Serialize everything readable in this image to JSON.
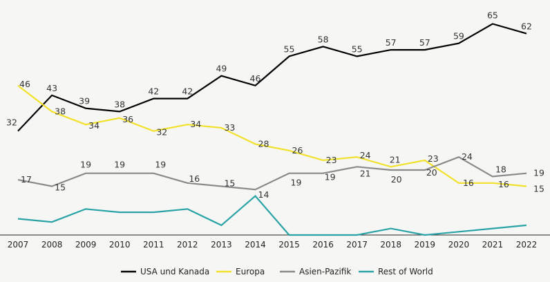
{
  "chart_data": {
    "type": "line",
    "x": [
      "2007",
      "2008",
      "2009",
      "2010",
      "2011",
      "2012",
      "2013",
      "2014",
      "2015",
      "2016",
      "2017",
      "2018",
      "2019",
      "2020",
      "2021",
      "2022"
    ],
    "ylim": [
      0,
      70
    ],
    "grid": false,
    "legend_position": "bottom",
    "series": [
      {
        "name": "USA und Kanada",
        "color": "#000000",
        "values": [
          32,
          43,
          39,
          38,
          42,
          42,
          49,
          46,
          55,
          58,
          55,
          57,
          57,
          59,
          65,
          62
        ]
      },
      {
        "name": "Europa",
        "color": "#f2e12a",
        "values": [
          46,
          38,
          34,
          36,
          32,
          34,
          33,
          28,
          26,
          23,
          24,
          21,
          23,
          16,
          16,
          15
        ]
      },
      {
        "name": "Asien-Pazifik",
        "color": "#8a8a8a",
        "values": [
          17,
          15,
          19,
          19,
          19,
          16,
          15,
          14,
          19,
          19,
          21,
          20,
          20,
          24,
          18,
          19
        ]
      },
      {
        "name": "Rest of World",
        "color": "#2aa3a6",
        "values": [
          null,
          null,
          null,
          null,
          null,
          null,
          null,
          null,
          null,
          null,
          null,
          null,
          null,
          null,
          null,
          null
        ],
        "unlabeled_approx": [
          5,
          4,
          8,
          7,
          7,
          8,
          3,
          12,
          0,
          0,
          0,
          2,
          0,
          1,
          2,
          3
        ]
      }
    ]
  }
}
